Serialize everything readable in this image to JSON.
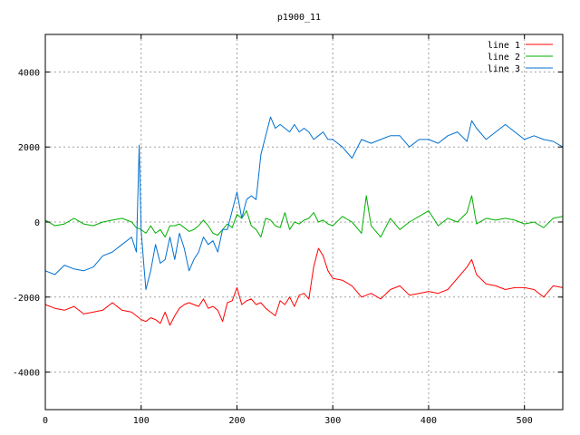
{
  "chart_data": {
    "type": "line",
    "title": "p1900_11",
    "xlabel": "",
    "ylabel": "",
    "xlim": [
      0,
      540
    ],
    "ylim": [
      -5000,
      5000
    ],
    "x_ticks": [
      0,
      100,
      200,
      300,
      400,
      500
    ],
    "y_ticks": [
      -4000,
      -2000,
      0,
      2000,
      4000
    ],
    "grid": true,
    "legend_position": "top-right",
    "series": [
      {
        "name": "line 1",
        "color": "#ff0000",
        "x": [
          0,
          10,
          20,
          30,
          40,
          50,
          60,
          70,
          80,
          90,
          95,
          100,
          105,
          110,
          115,
          120,
          125,
          130,
          135,
          140,
          145,
          150,
          155,
          160,
          165,
          170,
          175,
          180,
          185,
          190,
          195,
          200,
          205,
          210,
          215,
          220,
          225,
          230,
          235,
          240,
          245,
          250,
          255,
          260,
          265,
          270,
          275,
          280,
          285,
          290,
          295,
          300,
          310,
          320,
          330,
          340,
          350,
          360,
          370,
          380,
          390,
          400,
          410,
          420,
          430,
          440,
          445,
          450,
          460,
          470,
          480,
          490,
          500,
          510,
          520,
          530,
          540
        ],
        "y": [
          -2200,
          -2300,
          -2350,
          -2250,
          -2450,
          -2400,
          -2350,
          -2150,
          -2350,
          -2400,
          -2500,
          -2600,
          -2650,
          -2550,
          -2600,
          -2700,
          -2400,
          -2750,
          -2500,
          -2300,
          -2200,
          -2150,
          -2200,
          -2250,
          -2050,
          -2300,
          -2250,
          -2350,
          -2650,
          -2150,
          -2100,
          -1750,
          -2200,
          -2100,
          -2050,
          -2200,
          -2150,
          -2300,
          -2400,
          -2500,
          -2100,
          -2200,
          -2000,
          -2250,
          -1950,
          -1900,
          -2050,
          -1200,
          -700,
          -900,
          -1300,
          -1500,
          -1550,
          -1700,
          -2000,
          -1900,
          -2050,
          -1800,
          -1700,
          -1950,
          -1900,
          -1850,
          -1900,
          -1800,
          -1500,
          -1200,
          -1000,
          -1400,
          -1650,
          -1700,
          -1800,
          -1750,
          -1750,
          -1800,
          -2000,
          -1700,
          -1750
        ]
      },
      {
        "name": "line 2",
        "color": "#00b000",
        "x": [
          0,
          10,
          20,
          30,
          40,
          50,
          60,
          70,
          80,
          90,
          95,
          100,
          105,
          110,
          115,
          120,
          125,
          130,
          135,
          140,
          145,
          150,
          155,
          160,
          165,
          170,
          175,
          180,
          185,
          190,
          195,
          200,
          205,
          210,
          215,
          220,
          225,
          230,
          235,
          240,
          245,
          250,
          255,
          260,
          265,
          270,
          275,
          280,
          285,
          290,
          295,
          300,
          310,
          320,
          330,
          335,
          340,
          350,
          360,
          370,
          380,
          390,
          400,
          410,
          420,
          430,
          440,
          445,
          450,
          460,
          470,
          480,
          490,
          500,
          510,
          520,
          530,
          540
        ],
        "y": [
          50,
          -100,
          -50,
          100,
          -50,
          -100,
          0,
          50,
          100,
          0,
          -150,
          -200,
          -300,
          -100,
          -300,
          -200,
          -400,
          -100,
          -100,
          -50,
          -150,
          -250,
          -200,
          -100,
          50,
          -100,
          -300,
          -350,
          -200,
          -50,
          -150,
          200,
          100,
          300,
          -100,
          -200,
          -400,
          100,
          50,
          -100,
          -150,
          250,
          -200,
          0,
          -50,
          50,
          100,
          250,
          0,
          50,
          -50,
          -100,
          150,
          0,
          -300,
          700,
          -100,
          -400,
          100,
          -200,
          0,
          150,
          300,
          -100,
          100,
          0,
          250,
          700,
          -50,
          100,
          50,
          100,
          50,
          -50,
          0,
          -150,
          100,
          150
        ]
      },
      {
        "name": "line 3",
        "color": "#0070d0",
        "x": [
          0,
          10,
          20,
          30,
          40,
          50,
          60,
          70,
          80,
          90,
          95,
          98,
          100,
          103,
          105,
          110,
          115,
          120,
          125,
          130,
          135,
          140,
          145,
          150,
          155,
          160,
          165,
          170,
          175,
          180,
          185,
          190,
          195,
          200,
          205,
          210,
          215,
          220,
          225,
          230,
          235,
          240,
          245,
          250,
          255,
          260,
          265,
          270,
          275,
          280,
          285,
          290,
          295,
          300,
          310,
          320,
          330,
          340,
          350,
          360,
          370,
          380,
          390,
          400,
          410,
          420,
          430,
          440,
          445,
          450,
          460,
          470,
          480,
          490,
          500,
          510,
          520,
          530,
          540
        ],
        "y": [
          -1300,
          -1400,
          -1150,
          -1250,
          -1300,
          -1200,
          -900,
          -800,
          -600,
          -400,
          -800,
          2050,
          -200,
          -1200,
          -1800,
          -1300,
          -600,
          -1100,
          -1000,
          -400,
          -1000,
          -300,
          -700,
          -1300,
          -1000,
          -800,
          -400,
          -600,
          -500,
          -800,
          -200,
          -200,
          300,
          800,
          100,
          600,
          700,
          600,
          1800,
          2300,
          2800,
          2500,
          2600,
          2500,
          2400,
          2600,
          2400,
          2500,
          2400,
          2200,
          2300,
          2400,
          2200,
          2200,
          2000,
          1700,
          2200,
          2100,
          2200,
          2300,
          2300,
          2000,
          2200,
          2200,
          2100,
          2300,
          2400,
          2150,
          2700,
          2500,
          2200,
          2400,
          2600,
          2400,
          2200,
          2300,
          2200,
          2150,
          2000
        ]
      }
    ]
  }
}
